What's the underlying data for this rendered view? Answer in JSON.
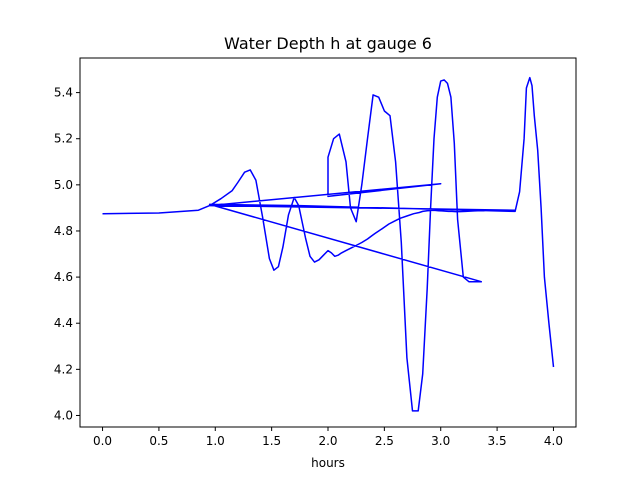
{
  "chart_data": {
    "type": "line",
    "title": "Water Depth h at gauge 6",
    "xlabel": "hours",
    "ylabel": "",
    "xlim": [
      -0.2,
      4.2
    ],
    "ylim": [
      3.95,
      5.55
    ],
    "xticks": [
      0.0,
      0.5,
      1.0,
      1.5,
      2.0,
      2.5,
      3.0,
      3.5,
      4.0
    ],
    "xtick_labels": [
      "0.0",
      "0.5",
      "1.0",
      "1.5",
      "2.0",
      "2.5",
      "3.0",
      "3.5",
      "4.0"
    ],
    "yticks": [
      4.0,
      4.2,
      4.4,
      4.6,
      4.8,
      5.0,
      5.2,
      5.4
    ],
    "ytick_labels": [
      "4.0",
      "4.2",
      "4.4",
      "4.6",
      "4.8",
      "5.0",
      "5.2",
      "5.4"
    ],
    "grid": false,
    "series": [
      {
        "color": "#0000ff",
        "x": [
          0.0,
          0.5,
          0.85,
          0.95,
          1.05,
          1.15,
          1.2,
          1.26,
          1.31,
          1.36,
          1.42,
          1.48,
          1.52,
          1.56,
          1.6,
          1.65,
          1.7,
          1.74,
          1.8,
          1.84,
          1.88,
          1.92,
          1.96,
          2.0,
          2.03,
          2.06,
          2.09,
          2.12,
          2.16,
          2.2,
          2.24,
          2.3,
          2.35,
          2.39,
          2.42,
          2.45,
          2.48,
          2.51,
          2.54,
          2.58,
          2.64,
          2.7,
          2.76,
          2.81,
          2.84,
          2.88,
          2.92,
          2.95,
          2.98,
          3.01,
          3.04,
          3.07,
          3.1,
          3.13,
          3.17,
          3.22,
          3.26,
          3.3,
          3.33,
          3.35,
          3.38,
          3.42,
          3.47,
          3.52,
          3.56,
          3.6,
          3.64,
          3.66,
          0.95,
          3.0,
          2.0,
          2.0,
          2.05,
          2.1,
          2.16,
          2.2,
          2.25,
          2.3,
          2.35,
          2.4,
          2.45,
          2.5,
          2.55,
          2.6,
          2.65,
          2.7,
          2.75,
          2.8,
          2.84,
          2.88,
          2.91,
          2.94,
          2.97,
          3.0,
          3.03,
          3.06,
          3.09,
          3.12,
          3.15,
          3.2,
          3.25,
          3.3,
          3.34,
          3.36,
          0.95,
          1.75,
          3.66,
          3.7,
          3.74,
          3.76,
          3.79,
          3.81,
          3.83,
          3.86,
          3.89,
          3.92,
          3.96,
          4.0
        ],
        "y": [
          4.875,
          4.878,
          4.89,
          4.91,
          4.94,
          4.975,
          5.01,
          5.055,
          5.065,
          5.02,
          4.86,
          4.68,
          4.63,
          4.645,
          4.73,
          4.87,
          4.945,
          4.91,
          4.77,
          4.69,
          4.665,
          4.675,
          4.695,
          4.715,
          4.705,
          4.69,
          4.695,
          4.705,
          4.715,
          4.725,
          4.735,
          4.75,
          4.765,
          4.78,
          4.79,
          4.8,
          4.81,
          4.82,
          4.83,
          4.84,
          4.855,
          4.865,
          4.875,
          4.88,
          4.885,
          4.888,
          4.889,
          4.889,
          4.888,
          4.887,
          4.886,
          4.885,
          4.885,
          4.884,
          4.884,
          4.885,
          4.886,
          4.887,
          4.888,
          4.888,
          4.888,
          4.889,
          4.889,
          4.889,
          4.889,
          4.889,
          4.889,
          4.89,
          4.91,
          5.005,
          4.95,
          5.12,
          5.2,
          5.22,
          5.1,
          4.9,
          4.84,
          5.0,
          5.2,
          5.39,
          5.38,
          5.32,
          5.3,
          5.1,
          4.75,
          4.25,
          4.02,
          4.02,
          4.18,
          4.55,
          4.9,
          5.2,
          5.38,
          5.45,
          5.455,
          5.44,
          5.38,
          5.18,
          4.85,
          4.6,
          4.58,
          4.58,
          4.58,
          4.58,
          4.915,
          4.91,
          4.885,
          4.97,
          5.2,
          5.42,
          5.465,
          5.43,
          5.3,
          5.15,
          4.9,
          4.6,
          4.4,
          4.21
        ]
      }
    ]
  }
}
